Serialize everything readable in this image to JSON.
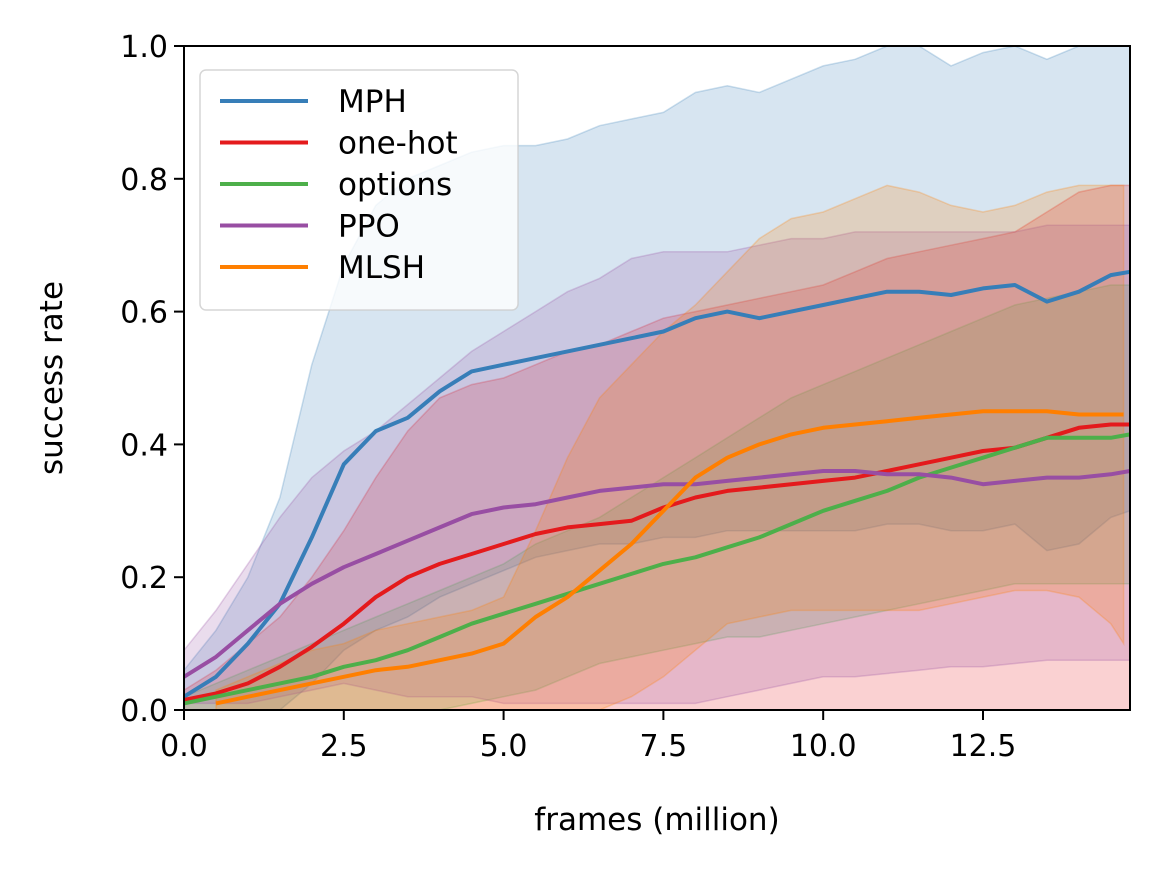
{
  "chart_data": {
    "type": "line",
    "title": "",
    "xlabel": "frames (million)",
    "ylabel": "success rate",
    "xlim": [
      0,
      14.8
    ],
    "ylim": [
      0,
      1.0
    ],
    "xticks": [
      0.0,
      2.5,
      5.0,
      7.5,
      10.0,
      12.5
    ],
    "xtick_labels": [
      "0.0",
      "2.5",
      "5.0",
      "7.5",
      "10.0",
      "12.5"
    ],
    "yticks": [
      0.0,
      0.2,
      0.4,
      0.6,
      0.8,
      1.0
    ],
    "ytick_labels": [
      "0.0",
      "0.2",
      "0.4",
      "0.6",
      "0.8",
      "1.0"
    ],
    "grid": false,
    "legend_position": "top-left",
    "series": [
      {
        "name": "MPH",
        "color": "#377eb8",
        "x": [
          0,
          0.5,
          1.0,
          1.5,
          2.0,
          2.5,
          3.0,
          3.5,
          4.0,
          4.5,
          5.0,
          5.5,
          6.0,
          6.5,
          7.0,
          7.5,
          8.0,
          8.5,
          9.0,
          9.5,
          10.0,
          10.5,
          11.0,
          11.5,
          12.0,
          12.5,
          13.0,
          13.5,
          14.0,
          14.5,
          14.8
        ],
        "y": [
          0.02,
          0.05,
          0.1,
          0.16,
          0.26,
          0.37,
          0.42,
          0.44,
          0.48,
          0.51,
          0.52,
          0.53,
          0.54,
          0.55,
          0.56,
          0.57,
          0.59,
          0.6,
          0.59,
          0.6,
          0.61,
          0.62,
          0.63,
          0.63,
          0.625,
          0.635,
          0.64,
          0.615,
          0.63,
          0.655,
          0.66
        ],
        "lower": [
          0.0,
          0.0,
          0.0,
          0.0,
          0.04,
          0.09,
          0.12,
          0.14,
          0.17,
          0.19,
          0.21,
          0.23,
          0.24,
          0.25,
          0.25,
          0.26,
          0.26,
          0.27,
          0.27,
          0.27,
          0.27,
          0.27,
          0.28,
          0.28,
          0.27,
          0.27,
          0.28,
          0.24,
          0.25,
          0.29,
          0.3
        ],
        "upper": [
          0.06,
          0.12,
          0.2,
          0.32,
          0.52,
          0.67,
          0.76,
          0.8,
          0.82,
          0.84,
          0.85,
          0.85,
          0.86,
          0.88,
          0.89,
          0.9,
          0.93,
          0.94,
          0.93,
          0.95,
          0.97,
          0.98,
          1.0,
          1.0,
          0.97,
          0.99,
          1.0,
          0.98,
          1.0,
          1.0,
          1.0
        ]
      },
      {
        "name": "one-hot",
        "color": "#e41a1c",
        "x": [
          0,
          0.5,
          1.0,
          1.5,
          2.0,
          2.5,
          3.0,
          3.5,
          4.0,
          4.5,
          5.0,
          5.5,
          6.0,
          6.5,
          7.0,
          7.5,
          8.0,
          8.5,
          9.0,
          9.5,
          10.0,
          10.5,
          11.0,
          11.5,
          12.0,
          12.5,
          13.0,
          13.5,
          14.0,
          14.5,
          14.8
        ],
        "y": [
          0.015,
          0.025,
          0.04,
          0.065,
          0.095,
          0.13,
          0.17,
          0.2,
          0.22,
          0.235,
          0.25,
          0.265,
          0.275,
          0.28,
          0.285,
          0.305,
          0.32,
          0.33,
          0.335,
          0.34,
          0.345,
          0.35,
          0.36,
          0.37,
          0.38,
          0.39,
          0.395,
          0.41,
          0.425,
          0.43,
          0.43
        ],
        "lower": [
          0.0,
          0.0,
          0.0,
          0.0,
          0.0,
          0.0,
          0.0,
          0.0,
          0.0,
          0.0,
          0.0,
          0.0,
          0.0,
          0.0,
          0.0,
          0.0,
          0.0,
          0.0,
          0.0,
          0.0,
          0.0,
          0.0,
          0.0,
          0.0,
          0.0,
          0.0,
          0.0,
          0.0,
          0.0,
          0.0,
          0.0
        ],
        "upper": [
          0.03,
          0.06,
          0.1,
          0.14,
          0.2,
          0.27,
          0.35,
          0.42,
          0.47,
          0.49,
          0.5,
          0.52,
          0.54,
          0.55,
          0.57,
          0.59,
          0.6,
          0.61,
          0.62,
          0.63,
          0.64,
          0.66,
          0.68,
          0.69,
          0.7,
          0.71,
          0.72,
          0.75,
          0.78,
          0.79,
          0.79
        ]
      },
      {
        "name": "options",
        "color": "#4daf4a",
        "x": [
          0,
          0.5,
          1.0,
          1.5,
          2.0,
          2.5,
          3.0,
          3.5,
          4.0,
          4.5,
          5.0,
          5.5,
          6.0,
          6.5,
          7.0,
          7.5,
          8.0,
          8.5,
          9.0,
          9.5,
          10.0,
          10.5,
          11.0,
          11.5,
          12.0,
          12.5,
          13.0,
          13.5,
          14.0,
          14.5,
          14.8
        ],
        "y": [
          0.01,
          0.02,
          0.03,
          0.04,
          0.05,
          0.065,
          0.075,
          0.09,
          0.11,
          0.13,
          0.145,
          0.16,
          0.175,
          0.19,
          0.205,
          0.22,
          0.23,
          0.245,
          0.26,
          0.28,
          0.3,
          0.315,
          0.33,
          0.35,
          0.365,
          0.38,
          0.395,
          0.41,
          0.41,
          0.41,
          0.415
        ],
        "lower": [
          0.0,
          0.0,
          0.0,
          0.0,
          0.0,
          0.0,
          0.0,
          0.0,
          0.0,
          0.01,
          0.02,
          0.03,
          0.05,
          0.07,
          0.08,
          0.09,
          0.1,
          0.11,
          0.11,
          0.12,
          0.13,
          0.14,
          0.15,
          0.16,
          0.17,
          0.18,
          0.19,
          0.19,
          0.19,
          0.19,
          0.19
        ],
        "upper": [
          0.02,
          0.04,
          0.06,
          0.08,
          0.1,
          0.12,
          0.14,
          0.16,
          0.18,
          0.2,
          0.22,
          0.25,
          0.27,
          0.29,
          0.32,
          0.35,
          0.38,
          0.41,
          0.44,
          0.47,
          0.49,
          0.51,
          0.53,
          0.55,
          0.57,
          0.59,
          0.61,
          0.62,
          0.63,
          0.64,
          0.64
        ]
      },
      {
        "name": "PPO",
        "color": "#984ea3",
        "x": [
          0,
          0.5,
          1.0,
          1.5,
          2.0,
          2.5,
          3.0,
          3.5,
          4.0,
          4.5,
          5.0,
          5.5,
          6.0,
          6.5,
          7.0,
          7.5,
          8.0,
          8.5,
          9.0,
          9.5,
          10.0,
          10.5,
          11.0,
          11.5,
          12.0,
          12.5,
          13.0,
          13.5,
          14.0,
          14.5,
          14.8
        ],
        "y": [
          0.05,
          0.08,
          0.12,
          0.16,
          0.19,
          0.215,
          0.235,
          0.255,
          0.275,
          0.295,
          0.305,
          0.31,
          0.32,
          0.33,
          0.335,
          0.34,
          0.34,
          0.345,
          0.35,
          0.355,
          0.36,
          0.36,
          0.355,
          0.355,
          0.35,
          0.34,
          0.345,
          0.35,
          0.35,
          0.355,
          0.36
        ],
        "lower": [
          0.01,
          0.01,
          0.01,
          0.02,
          0.03,
          0.04,
          0.03,
          0.02,
          0.02,
          0.02,
          0.01,
          0.01,
          0.01,
          0.01,
          0.01,
          0.01,
          0.01,
          0.02,
          0.03,
          0.04,
          0.05,
          0.05,
          0.055,
          0.06,
          0.065,
          0.065,
          0.07,
          0.075,
          0.075,
          0.075,
          0.075
        ],
        "upper": [
          0.09,
          0.15,
          0.22,
          0.29,
          0.35,
          0.39,
          0.42,
          0.46,
          0.5,
          0.54,
          0.57,
          0.6,
          0.63,
          0.65,
          0.68,
          0.69,
          0.69,
          0.69,
          0.7,
          0.71,
          0.71,
          0.72,
          0.72,
          0.72,
          0.72,
          0.72,
          0.72,
          0.73,
          0.73,
          0.73,
          0.73
        ]
      },
      {
        "name": "MLSH",
        "color": "#ff7f00",
        "x": [
          0.5,
          1.0,
          1.5,
          2.0,
          2.5,
          3.0,
          3.5,
          4.0,
          4.5,
          5.0,
          5.5,
          6.0,
          6.5,
          7.0,
          7.5,
          8.0,
          8.5,
          9.0,
          9.5,
          10.0,
          10.5,
          11.0,
          11.5,
          12.0,
          12.5,
          13.0,
          13.5,
          14.0,
          14.5,
          14.7
        ],
        "y": [
          0.01,
          0.02,
          0.03,
          0.04,
          0.05,
          0.06,
          0.065,
          0.075,
          0.085,
          0.1,
          0.14,
          0.17,
          0.21,
          0.25,
          0.3,
          0.35,
          0.38,
          0.4,
          0.415,
          0.425,
          0.43,
          0.435,
          0.44,
          0.445,
          0.45,
          0.45,
          0.45,
          0.445,
          0.445,
          0.445
        ],
        "lower": [
          0.0,
          0.0,
          0.0,
          0.0,
          0.0,
          0.0,
          0.0,
          0.0,
          0.0,
          0.0,
          0.0,
          0.0,
          0.0,
          0.02,
          0.05,
          0.09,
          0.13,
          0.14,
          0.15,
          0.15,
          0.15,
          0.15,
          0.15,
          0.16,
          0.17,
          0.18,
          0.18,
          0.17,
          0.13,
          0.1
        ],
        "upper": [
          0.03,
          0.05,
          0.07,
          0.09,
          0.1,
          0.12,
          0.13,
          0.14,
          0.15,
          0.17,
          0.27,
          0.38,
          0.47,
          0.52,
          0.57,
          0.61,
          0.66,
          0.71,
          0.74,
          0.75,
          0.77,
          0.79,
          0.78,
          0.76,
          0.75,
          0.76,
          0.78,
          0.79,
          0.79,
          0.79
        ]
      }
    ]
  }
}
